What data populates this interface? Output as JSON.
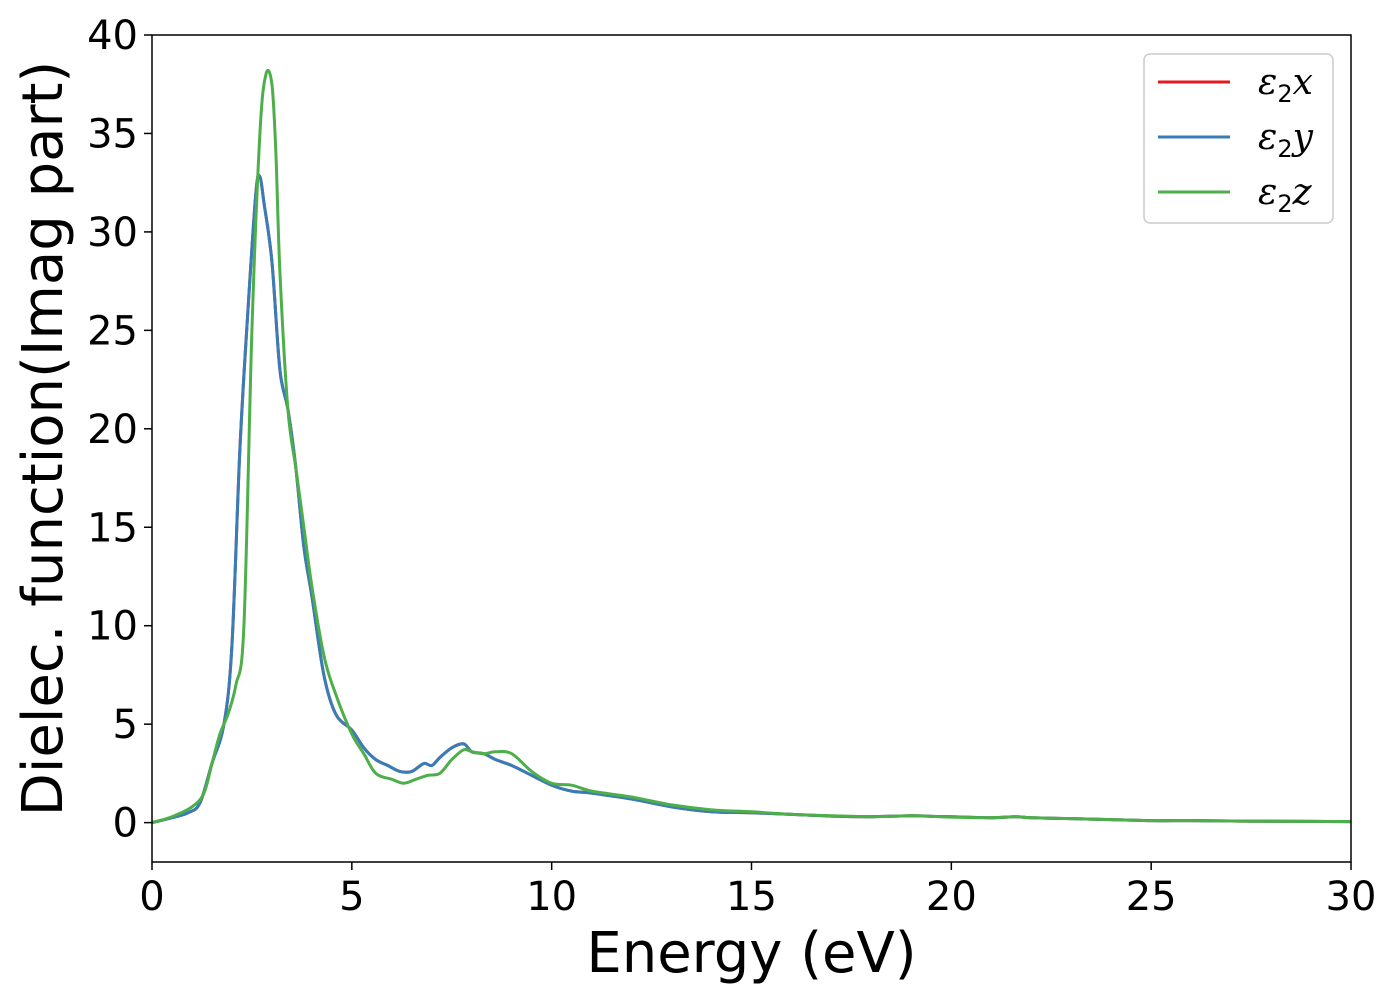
{
  "chart_data": {
    "type": "line",
    "title": "",
    "xlabel": "Energy (eV)",
    "ylabel": "Dielec. function(Imag part)",
    "xlim": [
      0,
      30
    ],
    "ylim": [
      -2,
      40
    ],
    "xticks": [
      0,
      5,
      10,
      15,
      20,
      25,
      30
    ],
    "yticks": [
      0,
      5,
      10,
      15,
      20,
      25,
      30,
      35,
      40
    ],
    "grid": false,
    "legend_position": "top-right",
    "series": [
      {
        "name": "ε2x",
        "legend_base": "ε",
        "legend_sub": "2",
        "legend_tail": "x",
        "color": "#e41a1c",
        "x": [
          0,
          0.5,
          0.9,
          1.2,
          1.5,
          1.8,
          2.0,
          2.2,
          2.4,
          2.6,
          2.7,
          2.8,
          3.0,
          3.2,
          3.4,
          3.6,
          3.8,
          4.0,
          4.3,
          4.6,
          5.0,
          5.3,
          5.6,
          5.9,
          6.2,
          6.5,
          6.8,
          7.0,
          7.2,
          7.5,
          7.8,
          8.0,
          8.3,
          8.6,
          9.0,
          9.5,
          10.0,
          10.5,
          11.0,
          12.0,
          13.0,
          14.0,
          15.0,
          16.0,
          17.0,
          18.0,
          19.0,
          19.5,
          20.0,
          21.0,
          21.6,
          22.0,
          23.0,
          24.0,
          25.0,
          26.0,
          27.0,
          28.0,
          30.0
        ],
        "values": [
          0,
          0.25,
          0.5,
          1.0,
          3.0,
          5.0,
          9.0,
          19.0,
          26.0,
          32.0,
          32.8,
          31.5,
          28.5,
          23.0,
          21.0,
          18.0,
          14.0,
          11.5,
          7.5,
          5.5,
          4.7,
          3.8,
          3.2,
          2.9,
          2.6,
          2.6,
          3.0,
          2.9,
          3.3,
          3.8,
          4.0,
          3.6,
          3.5,
          3.2,
          2.9,
          2.4,
          1.9,
          1.6,
          1.5,
          1.2,
          0.8,
          0.55,
          0.5,
          0.42,
          0.33,
          0.3,
          0.35,
          0.32,
          0.3,
          0.25,
          0.3,
          0.25,
          0.2,
          0.15,
          0.1,
          0.1,
          0.08,
          0.07,
          0.05
        ]
      },
      {
        "name": "ε2y",
        "legend_base": "ε",
        "legend_sub": "2",
        "legend_tail": "y",
        "color": "#377eb8",
        "x": [
          0,
          0.5,
          0.9,
          1.2,
          1.5,
          1.8,
          2.0,
          2.2,
          2.4,
          2.6,
          2.7,
          2.8,
          3.0,
          3.2,
          3.4,
          3.6,
          3.8,
          4.0,
          4.3,
          4.6,
          5.0,
          5.3,
          5.6,
          5.9,
          6.2,
          6.5,
          6.8,
          7.0,
          7.2,
          7.5,
          7.8,
          8.0,
          8.3,
          8.6,
          9.0,
          9.5,
          10.0,
          10.5,
          11.0,
          12.0,
          13.0,
          14.0,
          15.0,
          16.0,
          17.0,
          18.0,
          19.0,
          19.5,
          20.0,
          21.0,
          21.6,
          22.0,
          23.0,
          24.0,
          25.0,
          26.0,
          27.0,
          28.0,
          30.0
        ],
        "values": [
          0,
          0.25,
          0.5,
          1.0,
          3.0,
          5.0,
          9.0,
          19.0,
          26.0,
          32.0,
          32.8,
          31.5,
          28.5,
          23.0,
          21.0,
          18.0,
          14.0,
          11.5,
          7.5,
          5.5,
          4.7,
          3.8,
          3.2,
          2.9,
          2.6,
          2.6,
          3.0,
          2.9,
          3.3,
          3.8,
          4.0,
          3.6,
          3.5,
          3.2,
          2.9,
          2.4,
          1.9,
          1.6,
          1.5,
          1.2,
          0.8,
          0.55,
          0.5,
          0.42,
          0.33,
          0.3,
          0.35,
          0.32,
          0.3,
          0.25,
          0.3,
          0.25,
          0.2,
          0.15,
          0.1,
          0.1,
          0.08,
          0.07,
          0.05
        ]
      },
      {
        "name": "ε2z",
        "legend_base": "ε",
        "legend_sub": "2",
        "legend_tail": "z",
        "color": "#4daf4a",
        "x": [
          0,
          0.5,
          1.0,
          1.3,
          1.5,
          1.7,
          1.9,
          2.1,
          2.3,
          2.5,
          2.7,
          2.85,
          3.0,
          3.1,
          3.2,
          3.4,
          3.6,
          3.8,
          4.0,
          4.3,
          4.6,
          5.0,
          5.3,
          5.6,
          6.0,
          6.3,
          6.6,
          6.9,
          7.2,
          7.5,
          7.8,
          8.0,
          8.3,
          8.6,
          9.0,
          9.5,
          10.0,
          10.5,
          11.0,
          12.0,
          13.0,
          14.0,
          15.0,
          16.0,
          17.0,
          18.0,
          19.0,
          19.5,
          20.0,
          21.0,
          21.6,
          22.0,
          23.0,
          24.0,
          25.0,
          26.0,
          27.0,
          28.0,
          30.0
        ],
        "values": [
          0,
          0.3,
          0.8,
          1.5,
          3.0,
          4.5,
          5.5,
          7.0,
          10.0,
          25.0,
          35.0,
          38.0,
          37.5,
          34.0,
          28.0,
          21.0,
          18.0,
          15.0,
          12.0,
          8.5,
          6.5,
          4.5,
          3.5,
          2.5,
          2.2,
          2.0,
          2.2,
          2.4,
          2.5,
          3.2,
          3.7,
          3.6,
          3.5,
          3.6,
          3.5,
          2.6,
          2.0,
          1.9,
          1.6,
          1.3,
          0.9,
          0.65,
          0.55,
          0.42,
          0.35,
          0.3,
          0.35,
          0.32,
          0.28,
          0.25,
          0.3,
          0.25,
          0.2,
          0.15,
          0.1,
          0.1,
          0.08,
          0.07,
          0.05
        ]
      }
    ]
  }
}
